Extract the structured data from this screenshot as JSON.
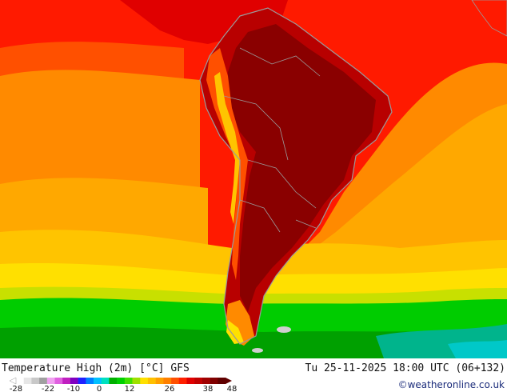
{
  "map": {
    "title": "Temperature High (2m) [°C] GFS",
    "valid_time": "Tu 25-11-2025 18:00 UTC (06+132)",
    "credit": "©weatheronline.co.uk",
    "region": "South America",
    "colors": {
      "very_hot": "#8a0000",
      "hot": "#b80000",
      "warm_red": "#e00000",
      "red": "#ff1a00",
      "orange_red": "#ff5000",
      "orange": "#ff8a00",
      "light_orange": "#ffa800",
      "yellow_orange": "#ffc400",
      "yellow": "#ffe000",
      "yellow_green": "#c8e000",
      "green": "#00cc00",
      "dark_green": "#00a000",
      "teal": "#00b48c",
      "cyan": "#00c8c8",
      "coast": "#9a9a9a"
    }
  },
  "legend": {
    "tick_labels": [
      "-28",
      "-22",
      "-10",
      "0",
      "12",
      "26",
      "38",
      "48"
    ],
    "colors": [
      "#ffffff",
      "#e6e6e6",
      "#c8c8c8",
      "#a0a0a0",
      "#f0a0f0",
      "#e060e0",
      "#c020c0",
      "#8000c0",
      "#2020ff",
      "#0080ff",
      "#00c0ff",
      "#00e0c0",
      "#00b000",
      "#00d000",
      "#40e000",
      "#a0e000",
      "#ffe000",
      "#ffc000",
      "#ffa000",
      "#ff8000",
      "#ff5000",
      "#ff2000",
      "#e00000",
      "#c00000",
      "#a00000",
      "#800000",
      "#600000"
    ]
  }
}
